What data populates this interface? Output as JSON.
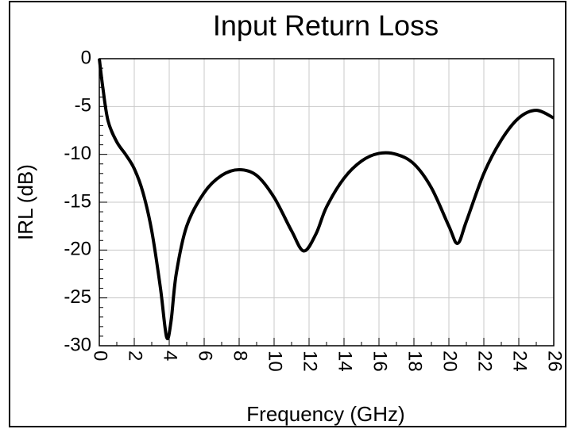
{
  "chart_data": {
    "type": "line",
    "title": "Input Return Loss",
    "x_label": "Frequency (GHz)",
    "y_label": "IRL (dB)",
    "x": [
      0,
      0.2,
      0.5,
      1,
      1.5,
      2,
      2.5,
      3,
      3.5,
      3.85,
      4.1,
      4.4,
      5,
      6,
      7,
      8,
      9,
      10,
      11,
      11.7,
      12.4,
      13,
      14,
      15,
      16,
      17,
      18,
      19,
      20,
      20.5,
      21,
      22,
      23,
      24,
      25,
      26
    ],
    "series": [
      {
        "name": "IRL",
        "color": "#000000",
        "values": [
          0,
          -3,
          -6.5,
          -8.7,
          -10,
          -11.5,
          -14,
          -18,
          -24,
          -29.1,
          -27.5,
          -22.5,
          -17.5,
          -14,
          -12.2,
          -11.6,
          -12.2,
          -14.5,
          -18,
          -20.1,
          -18.3,
          -15.5,
          -12.5,
          -10.7,
          -9.9,
          -10,
          -11,
          -13.5,
          -17.5,
          -19.3,
          -17,
          -12,
          -8.5,
          -6.2,
          -5.4,
          -6.2
        ]
      }
    ],
    "xlim": [
      0,
      26
    ],
    "xticks": [
      0,
      2,
      4,
      6,
      8,
      10,
      12,
      14,
      16,
      18,
      20,
      22,
      24,
      26
    ],
    "ylim": [
      -30,
      0
    ],
    "yticks": [
      0,
      -5,
      -10,
      -15,
      -20,
      -25,
      -30
    ],
    "grid": true
  }
}
